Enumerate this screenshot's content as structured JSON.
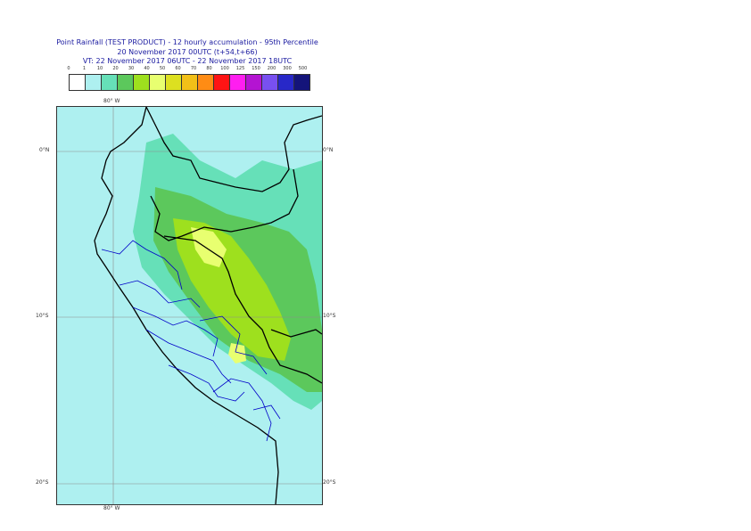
{
  "title": {
    "line1": "Point Rainfall (TEST PRODUCT) - 12 hourly accumulation - 95th Percentile",
    "line2": "20 November 2017 00UTC (t+54,t+66)",
    "line3": "VT: 22 November 2017 06UTC - 22 November 2017 18UTC"
  },
  "scale": {
    "thresholds": [
      "0",
      "1",
      "10",
      "20",
      "30",
      "40",
      "50",
      "60",
      "70",
      "80",
      "100",
      "125",
      "150",
      "200",
      "300",
      "500"
    ],
    "colors": [
      "#ffffff",
      "#aef0f0",
      "#66e0b8",
      "#5cc85c",
      "#9ee01e",
      "#e8ff70",
      "#dde020",
      "#f2c018",
      "#ff8c14",
      "#ff1414",
      "#ff1ef0",
      "#b414d2",
      "#7850f0",
      "#2828c8",
      "#14147a"
    ]
  },
  "map": {
    "lon_labels": {
      "top": "80° W",
      "bottom": "80° W"
    },
    "lat_labels": [
      "0°N",
      "10°S",
      "20°S"
    ],
    "colors": {
      "ocean": "#aef0f0",
      "light": "#aef0f0",
      "teal": "#66e0b8",
      "green": "#5cc85c",
      "lime": "#9ee01e",
      "yellow": "#e8ff70",
      "country_border": "#000000",
      "region_border": "#0000c8",
      "grid": "#8c8c8c"
    }
  }
}
